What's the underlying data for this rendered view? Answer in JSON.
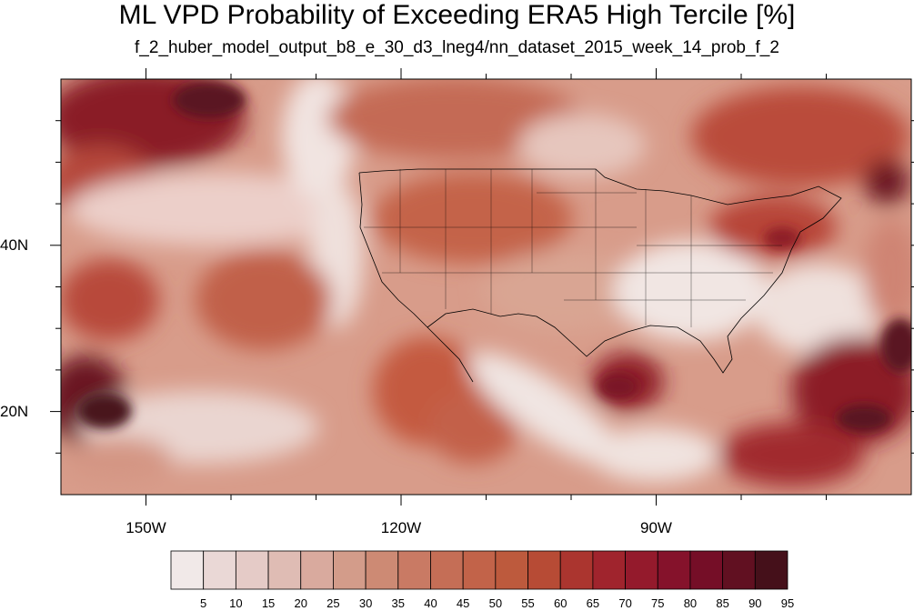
{
  "title": "ML VPD Probability of Exceeding ERA5 High Tercile [%]",
  "subtitle": "f_2_huber_model_output_b8_e_30_d3_lneg4/nn_dataset_2015_week_14_prob_f_2",
  "map": {
    "lon_range": [
      -160,
      -60
    ],
    "lat_range": [
      10,
      60
    ],
    "lon_ticks": [
      {
        "lon": -150,
        "label": "150W"
      },
      {
        "lon": -120,
        "label": "120W"
      },
      {
        "lon": -90,
        "label": "90W"
      }
    ],
    "lat_ticks": [
      {
        "lat": 40,
        "label": "40N"
      },
      {
        "lat": 20,
        "label": "20N"
      }
    ]
  },
  "colorbar": {
    "labels": [
      "5",
      "10",
      "15",
      "20",
      "25",
      "30",
      "35",
      "40",
      "45",
      "50",
      "55",
      "60",
      "65",
      "70",
      "75",
      "80",
      "85",
      "90",
      "95"
    ],
    "colors": [
      "#f1e9e8",
      "#ead8d6",
      "#e5cbc7",
      "#dfbcb4",
      "#d9aa9e",
      "#d39c8a",
      "#cd8a74",
      "#c97a64",
      "#c56e56",
      "#c26349",
      "#bd5a3d",
      "#b74b35",
      "#ab352f",
      "#a0242d",
      "#941a2c",
      "#85122b",
      "#750e27",
      "#611021",
      "#45101a"
    ]
  }
}
